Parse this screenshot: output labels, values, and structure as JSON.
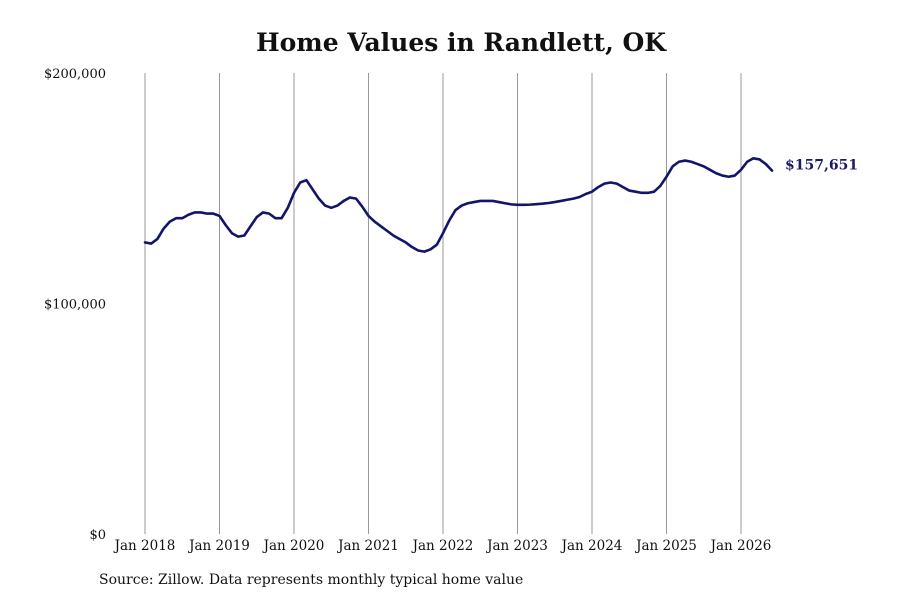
{
  "chart_data": {
    "type": "line",
    "title": "Home Values in Randlett, OK",
    "source": "Source: Zillow. Data represents monthly typical home value",
    "xlabel": "",
    "ylabel": "",
    "ylim": [
      0,
      200000
    ],
    "y_ticks": [
      {
        "value": 0,
        "label": "$0"
      },
      {
        "value": 100000,
        "label": "$100,000"
      },
      {
        "value": 200000,
        "label": "$200,000"
      }
    ],
    "x_ticks": [
      "Jan 2018",
      "Jan 2019",
      "Jan 2020",
      "Jan 2021",
      "Jan 2022",
      "Jan 2023",
      "Jan 2024",
      "Jan 2025",
      "Jan 2026"
    ],
    "grid": "vertical",
    "line_color": "#14146b",
    "end_label": "$157,651",
    "series": [
      {
        "start": "2018-01",
        "frequency": "monthly",
        "values": [
          126500,
          126000,
          128000,
          132500,
          135500,
          137000,
          137000,
          138500,
          139500,
          139500,
          139000,
          139000,
          138000,
          134000,
          130500,
          129000,
          129500,
          133500,
          137500,
          139500,
          139000,
          137000,
          137000,
          141500,
          148000,
          152500,
          153500,
          149500,
          145500,
          142500,
          141500,
          142500,
          144500,
          146000,
          145500,
          142000,
          138000,
          135500,
          133500,
          131500,
          129500,
          128000,
          126500,
          124500,
          123000,
          122500,
          123500,
          125500,
          130500,
          136000,
          140500,
          142500,
          143500,
          144000,
          144500,
          144500,
          144500,
          144000,
          143500,
          143000,
          142800,
          142800,
          142900,
          143100,
          143300,
          143600,
          144000,
          144500,
          145000,
          145500,
          146200,
          147500,
          148500,
          150500,
          152000,
          152500,
          152000,
          150500,
          149000,
          148500,
          148000,
          148000,
          148500,
          151000,
          155000,
          159500,
          161500,
          162000,
          161500,
          160500,
          159500,
          158000,
          156500,
          155500,
          155000,
          155500,
          158000,
          161500,
          163000,
          162500,
          160500,
          157651
        ]
      }
    ]
  }
}
